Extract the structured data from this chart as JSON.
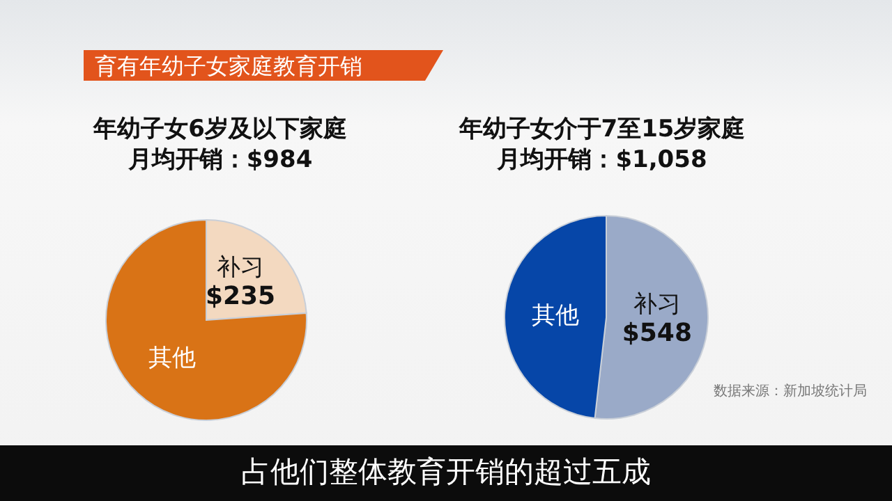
{
  "chart_data": [
    {
      "type": "pie",
      "title": "年幼子女6岁及以下家庭",
      "subtitle": "月均开销：$984",
      "categories": [
        "补习",
        "其他"
      ],
      "values": [
        235,
        749
      ],
      "colors": [
        "#f3d9c0",
        "#d97316"
      ],
      "value_labels": [
        "$235",
        null
      ],
      "annotations": [
        "育有年幼子女家庭教育开销"
      ]
    },
    {
      "type": "pie",
      "title": "年幼子女介于7至15岁家庭",
      "subtitle": "月均开销：$1,058",
      "categories": [
        "补习",
        "其他"
      ],
      "values": [
        548,
        510
      ],
      "colors": [
        "#9aaac8",
        "#0646a8"
      ],
      "value_labels": [
        "$548",
        null
      ],
      "annotations": [
        "数据来源：新加坡统计局",
        "占他们整体教育开销的超过五成"
      ]
    }
  ]
}
